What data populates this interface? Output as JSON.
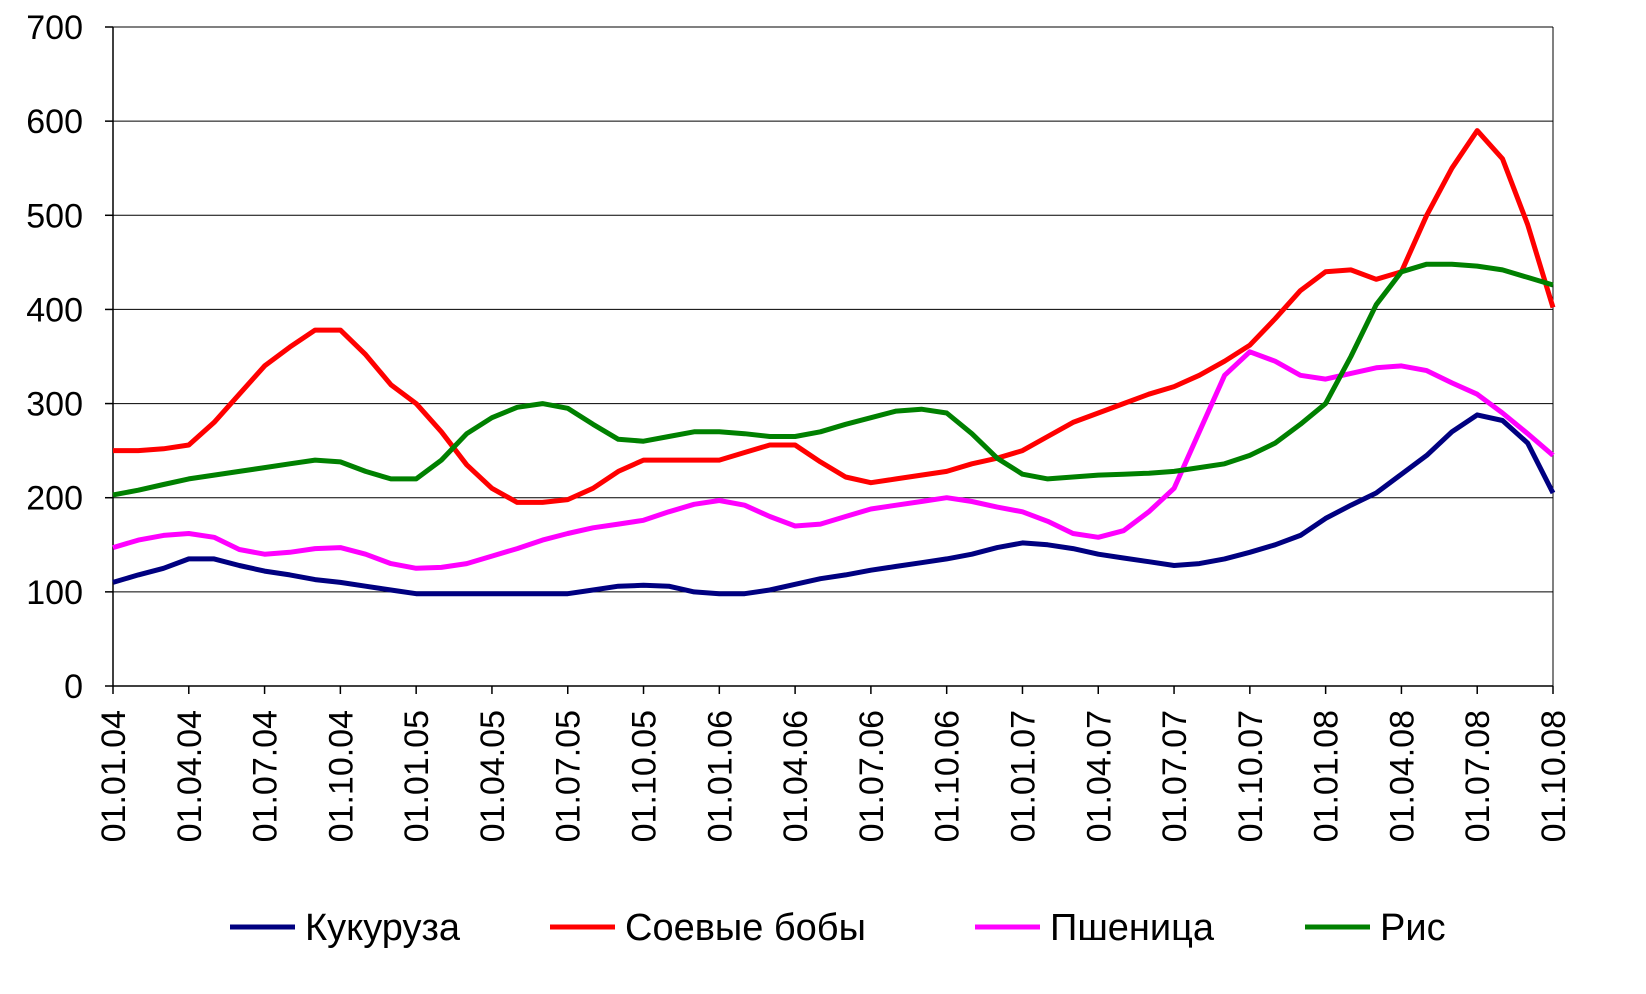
{
  "chart_data": {
    "type": "line",
    "categories": [
      "01.01.04",
      null,
      null,
      "01.04.04",
      null,
      null,
      "01.07.04",
      null,
      null,
      "01.10.04",
      null,
      null,
      "01.01.05",
      null,
      null,
      "01.04.05",
      null,
      null,
      "01.07.05",
      null,
      null,
      "01.10.05",
      null,
      null,
      "01.01.06",
      null,
      null,
      "01.04.06",
      null,
      null,
      "01.07.06",
      null,
      null,
      "01.10.06",
      null,
      null,
      "01.01.07",
      null,
      null,
      "01.04.07",
      null,
      null,
      "01.07.07",
      null,
      null,
      "01.10.07",
      null,
      null,
      "01.01.08",
      null,
      null,
      "01.04.08",
      null,
      null,
      "01.07.08",
      null,
      null,
      "01.10.08"
    ],
    "series": [
      {
        "name": "Кукуруза",
        "color": "#000080",
        "values": [
          110,
          118,
          125,
          135,
          135,
          128,
          122,
          118,
          113,
          110,
          106,
          102,
          98,
          98,
          98,
          98,
          98,
          98,
          98,
          102,
          106,
          107,
          106,
          100,
          98,
          98,
          102,
          108,
          114,
          118,
          123,
          127,
          131,
          135,
          140,
          147,
          152,
          150,
          146,
          140,
          136,
          132,
          128,
          130,
          135,
          142,
          150,
          160,
          178,
          192,
          205,
          225,
          245,
          270,
          288,
          282,
          258,
          205
        ]
      },
      {
        "name": "Соевые бобы",
        "color": "#ff0000",
        "values": [
          250,
          250,
          252,
          256,
          280,
          310,
          340,
          360,
          378,
          378,
          352,
          320,
          300,
          270,
          235,
          210,
          195,
          195,
          198,
          210,
          228,
          240,
          240,
          240,
          240,
          248,
          256,
          256,
          238,
          222,
          216,
          220,
          224,
          228,
          236,
          242,
          250,
          265,
          280,
          290,
          300,
          310,
          318,
          330,
          345,
          362,
          390,
          420,
          440,
          442,
          432,
          440,
          500,
          550,
          590,
          560,
          490,
          402
        ]
      },
      {
        "name": "Пшеница",
        "color": "#ff00ff",
        "values": [
          147,
          155,
          160,
          162,
          158,
          145,
          140,
          142,
          146,
          147,
          140,
          130,
          125,
          126,
          130,
          138,
          146,
          155,
          162,
          168,
          172,
          176,
          185,
          193,
          197,
          192,
          180,
          170,
          172,
          180,
          188,
          192,
          196,
          200,
          196,
          190,
          185,
          175,
          162,
          158,
          165,
          185,
          210,
          270,
          330,
          355,
          345,
          330,
          326,
          332,
          338,
          340,
          335,
          322,
          310,
          290,
          268,
          245
        ]
      },
      {
        "name": "Рис",
        "color": "#008000",
        "values": [
          203,
          208,
          214,
          220,
          224,
          228,
          232,
          236,
          240,
          238,
          228,
          220,
          220,
          240,
          268,
          285,
          296,
          300,
          295,
          278,
          262,
          260,
          265,
          270,
          270,
          268,
          265,
          265,
          270,
          278,
          285,
          292,
          294,
          290,
          268,
          242,
          225,
          220,
          222,
          224,
          225,
          226,
          228,
          232,
          236,
          245,
          258,
          278,
          300,
          350,
          405,
          440,
          448,
          448,
          446,
          442,
          434,
          426
        ]
      }
    ],
    "ylim": [
      0,
      700
    ],
    "yticks": [
      0,
      100,
      200,
      300,
      400,
      500,
      600,
      700
    ],
    "grid": true
  }
}
